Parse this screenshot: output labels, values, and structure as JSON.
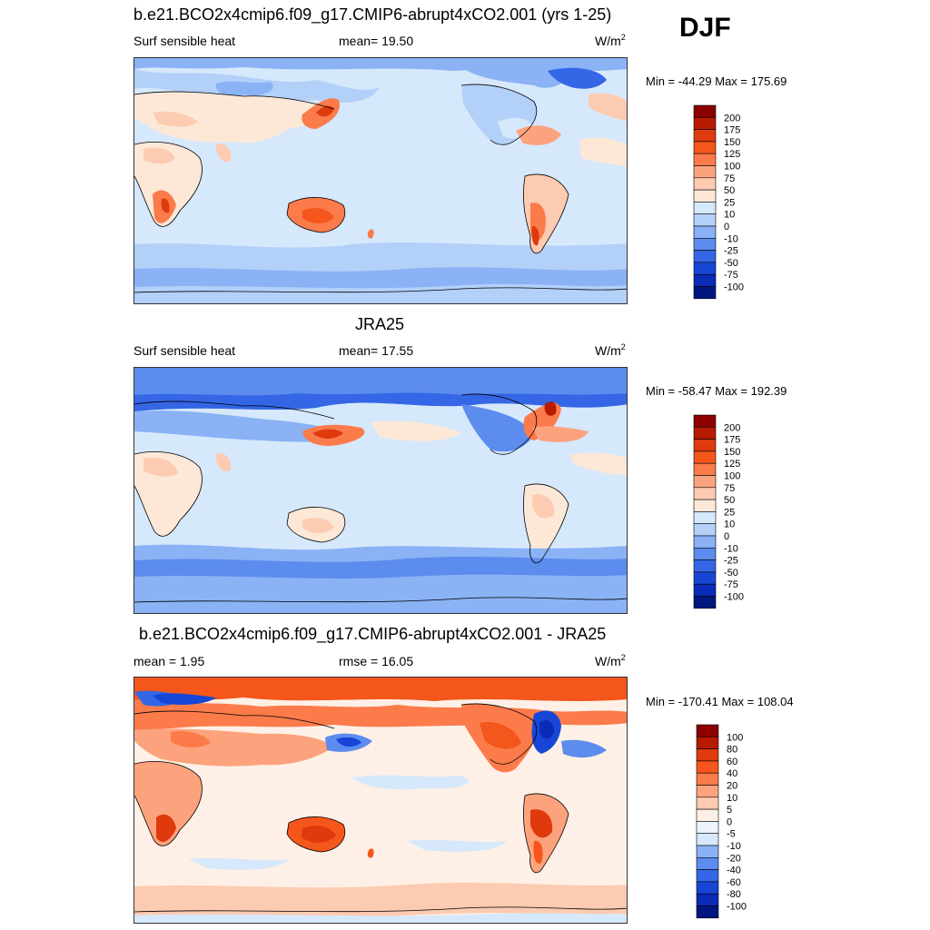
{
  "season": "DJF",
  "panels": [
    {
      "title": "b.e21.BCO2x4cmip6.f09_g17.CMIP6-abrupt4xCO2.001 (yrs 1-25)",
      "left_label": "Surf sensible heat",
      "mid_label": "mean=  19.50",
      "units": "W/m",
      "units_sup": "2",
      "minmax": "Min = -44.29 Max = 175.69"
    },
    {
      "title": "JRA25",
      "left_label": "Surf sensible heat",
      "mid_label": "mean=  17.55",
      "units": "W/m",
      "units_sup": "2",
      "minmax": "Min = -58.47 Max = 192.39"
    },
    {
      "title": "b.e21.BCO2x4cmip6.f09_g17.CMIP6-abrupt4xCO2.001 - JRA25",
      "left_label": "mean =   1.95",
      "mid_label": "rmse =  16.05",
      "units": "W/m",
      "units_sup": "2",
      "minmax": "Min = -170.41 Max = 108.04"
    }
  ],
  "chart_data": [
    {
      "type": "heatmap",
      "title": "b.e21.BCO2x4cmip6.f09_g17.CMIP6-abrupt4xCO2.001 (yrs 1-25)",
      "variable": "Surf sensible heat",
      "units": "W/m2",
      "mean": 19.5,
      "min": -44.29,
      "max": 175.69,
      "colorbar_labels": [
        "200",
        "175",
        "150",
        "125",
        "100",
        "75",
        "50",
        "25",
        "10",
        "0",
        "-10",
        "-25",
        "-50",
        "-75",
        "-100"
      ],
      "colors": [
        "#8b0000",
        "#b81a00",
        "#de3a0e",
        "#f4561b",
        "#fb7b4b",
        "#fca37e",
        "#fdcbb1",
        "#fde8d8",
        "#d6e8fb",
        "#b3d0f9",
        "#8ab2f5",
        "#5c8ced",
        "#3466e6",
        "#1746d6",
        "#0a2ab8",
        "#00177f"
      ]
    },
    {
      "type": "heatmap",
      "title": "JRA25",
      "variable": "Surf sensible heat",
      "units": "W/m2",
      "mean": 17.55,
      "min": -58.47,
      "max": 192.39,
      "colorbar_labels": [
        "200",
        "175",
        "150",
        "125",
        "100",
        "75",
        "50",
        "25",
        "10",
        "0",
        "-10",
        "-25",
        "-50",
        "-75",
        "-100"
      ],
      "colors": [
        "#8b0000",
        "#b81a00",
        "#de3a0e",
        "#f4561b",
        "#fb7b4b",
        "#fca37e",
        "#fdcbb1",
        "#fde8d8",
        "#d6e8fb",
        "#b3d0f9",
        "#8ab2f5",
        "#5c8ced",
        "#3466e6",
        "#1746d6",
        "#0a2ab8",
        "#00177f"
      ]
    },
    {
      "type": "heatmap",
      "title": "b.e21.BCO2x4cmip6.f09_g17.CMIP6-abrupt4xCO2.001 - JRA25",
      "units": "W/m2",
      "mean": 1.95,
      "rmse": 16.05,
      "min": -170.41,
      "max": 108.04,
      "colorbar_labels": [
        "100",
        "80",
        "60",
        "40",
        "20",
        "10",
        "5",
        "0",
        "-5",
        "-10",
        "-20",
        "-40",
        "-60",
        "-80",
        "-100"
      ],
      "colors": [
        "#8b0000",
        "#b81a00",
        "#de3a0e",
        "#f4561b",
        "#fb7b4b",
        "#fca37e",
        "#fdcbb1",
        "#fef0e6",
        "#eef4fc",
        "#d6e8fb",
        "#8ab2f5",
        "#5c8ced",
        "#3466e6",
        "#1746d6",
        "#0a2ab8",
        "#00177f"
      ]
    }
  ]
}
